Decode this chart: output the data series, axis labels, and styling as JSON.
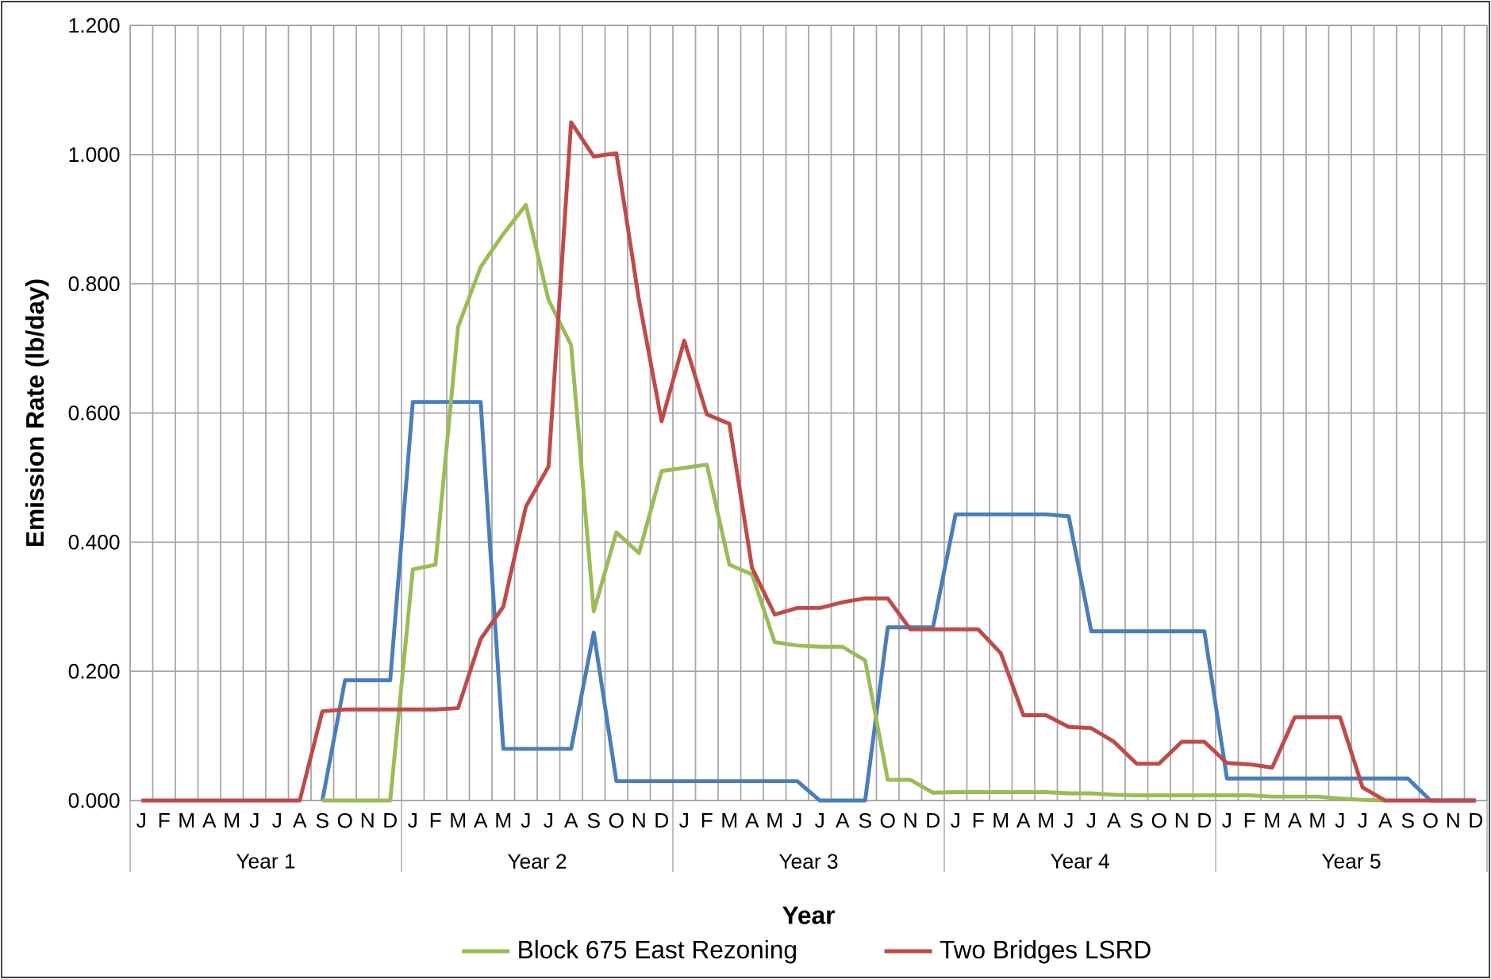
{
  "chart_data": {
    "type": "line",
    "xlabel": "Year",
    "ylabel": "Emission Rate (lb/day)",
    "categories": [
      "J",
      "F",
      "M",
      "A",
      "M",
      "J",
      "J",
      "A",
      "S",
      "O",
      "N",
      "D",
      "J",
      "F",
      "M",
      "A",
      "M",
      "J",
      "J",
      "A",
      "S",
      "O",
      "N",
      "D",
      "J",
      "F",
      "M",
      "A",
      "M",
      "J",
      "J",
      "A",
      "S",
      "O",
      "N",
      "D",
      "J",
      "F",
      "M",
      "A",
      "M",
      "J",
      "J",
      "A",
      "S",
      "O",
      "N",
      "D",
      "J",
      "F",
      "M",
      "A",
      "M",
      "J",
      "J",
      "A",
      "S",
      "O",
      "N",
      "D"
    ],
    "annotations": [
      "Year 1",
      "Year 2",
      "Year 3",
      "Year 4",
      "Year 5"
    ],
    "ylim": [
      0,
      1.2
    ],
    "yticks": [
      {
        "value": 0,
        "label": "0.000"
      },
      {
        "value": 0.2,
        "label": "0.200"
      },
      {
        "value": 0.4,
        "label": "0.400"
      },
      {
        "value": 0.6,
        "label": "0.600"
      },
      {
        "value": 0.8,
        "label": "0.800"
      },
      {
        "value": 1.0,
        "label": "1.000"
      },
      {
        "value": 1.2,
        "label": "1.200"
      }
    ],
    "grid": true,
    "legend": "bottom",
    "marker": "none",
    "line_style": "solid",
    "series": [
      {
        "color": "#4a7ebb",
        "values": [
          null,
          null,
          null,
          null,
          null,
          null,
          null,
          null,
          0,
          0.186,
          0.186,
          0.186,
          0.617,
          0.617,
          0.617,
          0.617,
          0.08,
          0.08,
          0.08,
          0.08,
          0.26,
          0.03,
          0.03,
          0.03,
          0.03,
          0.03,
          0.03,
          0.03,
          0.03,
          0.03,
          0,
          0,
          0,
          0.268,
          0.268,
          0.268,
          0.443,
          0.443,
          0.443,
          0.443,
          0.443,
          0.44,
          0.262,
          0.262,
          0.262,
          0.262,
          0.262,
          0.262,
          0.034,
          0.034,
          0.034,
          0.034,
          0.034,
          0.034,
          0.034,
          0.034,
          0.034,
          0,
          0,
          0
        ]
      },
      {
        "name": "Block 675 East Rezoning",
        "color": "#9bbb59",
        "values": [
          null,
          null,
          null,
          null,
          null,
          null,
          null,
          null,
          0,
          0,
          0,
          0,
          0.358,
          0.365,
          0.733,
          0.826,
          0.877,
          0.922,
          0.775,
          0.705,
          0.293,
          0.415,
          0.383,
          0.51,
          0.515,
          0.52,
          0.365,
          0.35,
          0.245,
          0.24,
          0.238,
          0.238,
          0.217,
          0.032,
          0.032,
          0.012,
          0.013,
          0.013,
          0.013,
          0.013,
          0.013,
          0.011,
          0.011,
          0.009,
          0.008,
          0.008,
          0.008,
          0.008,
          0.008,
          0.008,
          0.006,
          0.006,
          0.006,
          0.003,
          0.001,
          0,
          null,
          null,
          null,
          null
        ]
      },
      {
        "name": "Two Bridges LSRD",
        "color": "#be4b48",
        "values": [
          0,
          0,
          0,
          0,
          0,
          0,
          0,
          0,
          0.138,
          0.141,
          0.141,
          0.141,
          0.141,
          0.141,
          0.143,
          0.25,
          0.3,
          0.455,
          0.517,
          1.05,
          0.997,
          1.002,
          0.775,
          0.587,
          0.712,
          0.598,
          0.583,
          0.36,
          0.288,
          0.298,
          0.298,
          0.307,
          0.313,
          0.313,
          0.265,
          0.265,
          0.265,
          0.265,
          0.228,
          0.132,
          0.132,
          0.114,
          0.112,
          0.091,
          0.057,
          0.057,
          0.091,
          0.091,
          0.058,
          0.056,
          0.051,
          0.129,
          0.129,
          0.129,
          0.02,
          0,
          0,
          0,
          0,
          0
        ]
      }
    ]
  }
}
